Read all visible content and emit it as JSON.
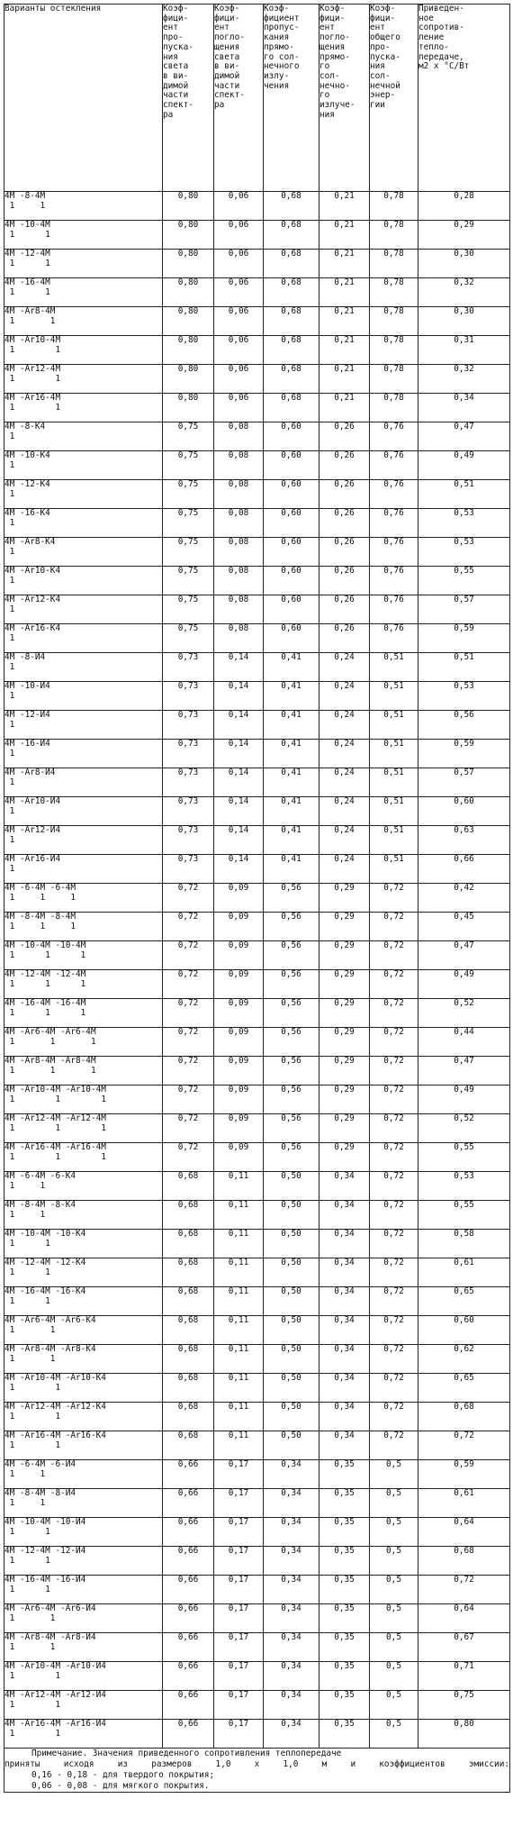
{
  "headers": [
    "Варианты остекления",
    "Коэф-\nфици-\nент\nпро-\nпуска-\nния\nсвета\nв ви-\nдимой\nчасти\nспект-\nра",
    "Коэф-\nфици-\nент\nпогло-\nщения\nсвета\nв ви-\nдимой\nчасти\nспект-\nра",
    "Коэф-\nфициент\nпропус-\nкания\nпрямо-\nго сол-\nнечного\nизлу-\nчения",
    "Коэф-\nфици-\nент\nпогло-\nщения\nпрямо-\nго\nсол-\nнечно-\nго\nизлуче-\nния",
    "Коэф-\nфици-\nент\nобщего\nпро-\nпуска-\nния\nсол-\nнечной\nэнер-\nгии",
    "Приведен-\nное\nсопротив-\nление\nтепло-\nпередаче,\nм2 х °С/Вт"
  ],
  "rows": [
    {
      "v": "4М -8-4М",
      "s": " 1     1",
      "a": "0,80",
      "b": "0,06",
      "c": "0,68",
      "d": "0,21",
      "e": "0,78",
      "r": "0,28"
    },
    {
      "v": "4М -10-4М",
      "s": " 1      1",
      "a": "0,80",
      "b": "0,06",
      "c": "0,68",
      "d": "0,21",
      "e": "0,78",
      "r": "0,29"
    },
    {
      "v": "4М -12-4М",
      "s": " 1      1",
      "a": "0,80",
      "b": "0,06",
      "c": "0,68",
      "d": "0,21",
      "e": "0,78",
      "r": "0,30"
    },
    {
      "v": "4М -16-4М",
      "s": " 1      1",
      "a": "0,80",
      "b": "0,06",
      "c": "0,68",
      "d": "0,21",
      "e": "0,78",
      "r": "0,32"
    },
    {
      "v": "4М -Ar8-4М",
      "s": " 1       1",
      "a": "0,80",
      "b": "0,06",
      "c": "0,68",
      "d": "0,21",
      "e": "0,78",
      "r": "0,30"
    },
    {
      "v": "4М -Ar10-4М",
      "s": " 1        1",
      "a": "0,80",
      "b": "0,06",
      "c": "0,68",
      "d": "0,21",
      "e": "0,78",
      "r": "0,31"
    },
    {
      "v": "4М -Ar12-4М",
      "s": " 1        1",
      "a": "0,80",
      "b": "0,06",
      "c": "0,68",
      "d": "0,21",
      "e": "0,78",
      "r": "0,32"
    },
    {
      "v": "4М -Ar16-4М",
      "s": " 1        1",
      "a": "0,80",
      "b": "0,06",
      "c": "0,68",
      "d": "0,21",
      "e": "0,78",
      "r": "0,34"
    },
    {
      "v": "4М -8-К4",
      "s": " 1",
      "a": "0,75",
      "b": "0,08",
      "c": "0,60",
      "d": "0,26",
      "e": "0,76",
      "r": "0,47"
    },
    {
      "v": "4М -10-К4",
      "s": " 1",
      "a": "0,75",
      "b": "0,08",
      "c": "0,60",
      "d": "0,26",
      "e": "0,76",
      "r": "0,49"
    },
    {
      "v": "4М -12-К4",
      "s": " 1",
      "a": "0,75",
      "b": "0,08",
      "c": "0,60",
      "d": "0,26",
      "e": "0,76",
      "r": "0,51"
    },
    {
      "v": "4М -16-К4",
      "s": " 1",
      "a": "0,75",
      "b": "0,08",
      "c": "0,60",
      "d": "0,26",
      "e": "0,76",
      "r": "0,53"
    },
    {
      "v": "4М -Ar8-К4",
      "s": " 1",
      "a": "0,75",
      "b": "0,08",
      "c": "0,60",
      "d": "0,26",
      "e": "0,76",
      "r": "0,53"
    },
    {
      "v": "4М -Ar10-К4",
      "s": " 1",
      "a": "0,75",
      "b": "0,08",
      "c": "0,60",
      "d": "0,26",
      "e": "0,76",
      "r": "0,55"
    },
    {
      "v": "4М -Ar12-К4",
      "s": " 1",
      "a": "0,75",
      "b": "0,08",
      "c": "0,60",
      "d": "0,26",
      "e": "0,76",
      "r": "0,57"
    },
    {
      "v": "4М -Ar16-К4",
      "s": " 1",
      "a": "0,75",
      "b": "0,08",
      "c": "0,60",
      "d": "0,26",
      "e": "0,76",
      "r": "0,59"
    },
    {
      "v": "4М -8-И4",
      "s": " 1",
      "a": "0,73",
      "b": "0,14",
      "c": "0,41",
      "d": "0,24",
      "e": "0,51",
      "r": "0,51"
    },
    {
      "v": "4М -10-И4",
      "s": " 1",
      "a": "0,73",
      "b": "0,14",
      "c": "0,41",
      "d": "0,24",
      "e": "0,51",
      "r": "0,53"
    },
    {
      "v": "4М -12-И4",
      "s": " 1",
      "a": "0,73",
      "b": "0,14",
      "c": "0,41",
      "d": "0,24",
      "e": "0,51",
      "r": "0,56"
    },
    {
      "v": "4М -16-И4",
      "s": " 1",
      "a": "0,73",
      "b": "0,14",
      "c": "0,41",
      "d": "0,24",
      "e": "0,51",
      "r": "0,59"
    },
    {
      "v": "4М -Ar8-И4",
      "s": " 1",
      "a": "0,73",
      "b": "0,14",
      "c": "0,41",
      "d": "0,24",
      "e": "0,51",
      "r": "0,57"
    },
    {
      "v": "4М -Ar10-И4",
      "s": " 1",
      "a": "0,73",
      "b": "0,14",
      "c": "0,41",
      "d": "0,24",
      "e": "0,51",
      "r": "0,60"
    },
    {
      "v": "4М -Ar12-И4",
      "s": " 1",
      "a": "0,73",
      "b": "0,14",
      "c": "0,41",
      "d": "0,24",
      "e": "0,51",
      "r": "0,63"
    },
    {
      "v": "4М -Ar16-И4",
      "s": " 1",
      "a": "0,73",
      "b": "0,14",
      "c": "0,41",
      "d": "0,24",
      "e": "0,51",
      "r": "0,66"
    },
    {
      "v": "4М -6-4М -6-4М",
      "s": " 1     1     1",
      "a": "0,72",
      "b": "0,09",
      "c": "0,56",
      "d": "0,29",
      "e": "0,72",
      "r": "0,42"
    },
    {
      "v": "4М -8-4М -8-4М",
      "s": " 1     1     1",
      "a": "0,72",
      "b": "0,09",
      "c": "0,56",
      "d": "0,29",
      "e": "0,72",
      "r": "0,45"
    },
    {
      "v": "4М -10-4М -10-4М",
      "s": " 1      1      1",
      "a": "0,72",
      "b": "0,09",
      "c": "0,56",
      "d": "0,29",
      "e": "0,72",
      "r": "0,47"
    },
    {
      "v": "4М -12-4М -12-4М",
      "s": " 1      1      1",
      "a": "0,72",
      "b": "0,09",
      "c": "0,56",
      "d": "0,29",
      "e": "0,72",
      "r": "0,49"
    },
    {
      "v": "4М -16-4М -16-4М",
      "s": " 1      1      1",
      "a": "0,72",
      "b": "0,09",
      "c": "0,56",
      "d": "0,29",
      "e": "0,72",
      "r": "0,52"
    },
    {
      "v": "4М -Ar6-4М -Ar6-4М",
      "s": " 1       1       1",
      "a": "0,72",
      "b": "0,09",
      "c": "0,56",
      "d": "0,29",
      "e": "0,72",
      "r": "0,44"
    },
    {
      "v": "4М -Ar8-4М -Ar8-4М",
      "s": " 1       1       1",
      "a": "0,72",
      "b": "0,09",
      "c": "0,56",
      "d": "0,29",
      "e": "0,72",
      "r": "0,47"
    },
    {
      "v": "4М -Ar10-4М -Ar10-4М",
      "s": " 1        1        1",
      "a": "0,72",
      "b": "0,09",
      "c": "0,56",
      "d": "0,29",
      "e": "0,72",
      "r": "0,49"
    },
    {
      "v": "4М -Ar12-4М -Ar12-4М",
      "s": " 1        1        1",
      "a": "0,72",
      "b": "0,09",
      "c": "0,56",
      "d": "0,29",
      "e": "0,72",
      "r": "0,52"
    },
    {
      "v": "4М -Ar16-4М -Ar16-4М",
      "s": " 1        1        1",
      "a": "0,72",
      "b": "0,09",
      "c": "0,56",
      "d": "0,29",
      "e": "0,72",
      "r": "0,55"
    },
    {
      "v": "4М -6-4М -6-К4",
      "s": " 1     1",
      "a": "0,68",
      "b": "0,11",
      "c": "0,50",
      "d": "0,34",
      "e": "0,72",
      "r": "0,53"
    },
    {
      "v": "4М -8-4М -8-К4",
      "s": " 1     1",
      "a": "0,68",
      "b": "0,11",
      "c": "0,50",
      "d": "0,34",
      "e": "0,72",
      "r": "0,55"
    },
    {
      "v": "4М -10-4М -10-К4",
      "s": " 1      1",
      "a": "0,68",
      "b": "0,11",
      "c": "0,50",
      "d": "0,34",
      "e": "0,72",
      "r": "0,58"
    },
    {
      "v": "4М -12-4М -12-К4",
      "s": " 1      1",
      "a": "0,68",
      "b": "0,11",
      "c": "0,50",
      "d": "0,34",
      "e": "0,72",
      "r": "0,61"
    },
    {
      "v": "4М -16-4М -16-К4",
      "s": " 1      1",
      "a": "0,68",
      "b": "0,11",
      "c": "0,50",
      "d": "0,34",
      "e": "0,72",
      "r": "0,65"
    },
    {
      "v": "4М -Ar6-4М -Ar6-К4",
      "s": " 1       1",
      "a": "0,68",
      "b": "0,11",
      "c": "0,50",
      "d": "0,34",
      "e": "0,72",
      "r": "0,60"
    },
    {
      "v": "4М -Ar8-4М -Ar8-К4",
      "s": " 1       1",
      "a": "0,68",
      "b": "0,11",
      "c": "0,50",
      "d": "0,34",
      "e": "0,72",
      "r": "0,62"
    },
    {
      "v": "4М -Ar10-4М -Ar10-К4",
      "s": " 1        1",
      "a": "0,68",
      "b": "0,11",
      "c": "0,50",
      "d": "0,34",
      "e": "0,72",
      "r": "0,65"
    },
    {
      "v": "4М -Ar12-4М -Ar12-К4",
      "s": " 1        1",
      "a": "0,68",
      "b": "0,11",
      "c": "0,50",
      "d": "0,34",
      "e": "0,72",
      "r": "0,68"
    },
    {
      "v": "4М -Ar16-4М -Ar16-К4",
      "s": " 1        1",
      "a": "0,68",
      "b": "0,11",
      "c": "0,50",
      "d": "0,34",
      "e": "0,72",
      "r": "0,72"
    },
    {
      "v": "4М -6-4М -6-И4",
      "s": " 1     1",
      "a": "0,66",
      "b": "0,17",
      "c": "0,34",
      "d": "0,35",
      "e": "0,5",
      "r": "0,59"
    },
    {
      "v": "4М -8-4М -8-И4",
      "s": " 1     1",
      "a": "0,66",
      "b": "0,17",
      "c": "0,34",
      "d": "0,35",
      "e": "0,5",
      "r": "0,61"
    },
    {
      "v": "4М -10-4М -10-И4",
      "s": " 1      1",
      "a": "0,66",
      "b": "0,17",
      "c": "0,34",
      "d": "0,35",
      "e": "0,5",
      "r": "0,64"
    },
    {
      "v": "4М -12-4М -12-И4",
      "s": " 1      1",
      "a": "0,66",
      "b": "0,17",
      "c": "0,34",
      "d": "0,35",
      "e": "0,5",
      "r": "0,68"
    },
    {
      "v": "4М -16-4М -16-И4",
      "s": " 1      1",
      "a": "0,66",
      "b": "0,17",
      "c": "0,34",
      "d": "0,35",
      "e": "0,5",
      "r": "0,72"
    },
    {
      "v": "4М -Ar6-4М -Ar6-И4",
      "s": " 1       1",
      "a": "0,66",
      "b": "0,17",
      "c": "0,34",
      "d": "0,35",
      "e": "0,5",
      "r": "0,64"
    },
    {
      "v": "4М -Ar8-4М -Ar8-И4",
      "s": " 1       1",
      "a": "0,66",
      "b": "0,17",
      "c": "0,34",
      "d": "0,35",
      "e": "0,5",
      "r": "0,67"
    },
    {
      "v": "4М -Ar10-4М -Ar10-И4",
      "s": " 1        1",
      "a": "0,66",
      "b": "0,17",
      "c": "0,34",
      "d": "0,35",
      "e": "0,5",
      "r": "0,71"
    },
    {
      "v": "4М -Ar12-4М -Ar12-И4",
      "s": " 1        1",
      "a": "0,66",
      "b": "0,17",
      "c": "0,34",
      "d": "0,35",
      "e": "0,5",
      "r": "0,75"
    },
    {
      "v": "4М -Ar16-4М -Ar16-И4",
      "s": " 1        1",
      "a": "0,66",
      "b": "0,17",
      "c": "0,34",
      "d": "0,35",
      "e": "0,5",
      "r": "0,80"
    }
  ],
  "note": {
    "line1": "Примечание. Значения приведенного сопротивления теплопередаче",
    "line2": "приняты исходя из  размеров  1,0 х 1,0  м и  коэффициентов  эмиссии:",
    "line3": "0,16 - 0,18 - для твердого покрытия;",
    "line4": "0,06 - 0,08 - для мягкого покрытия."
  }
}
